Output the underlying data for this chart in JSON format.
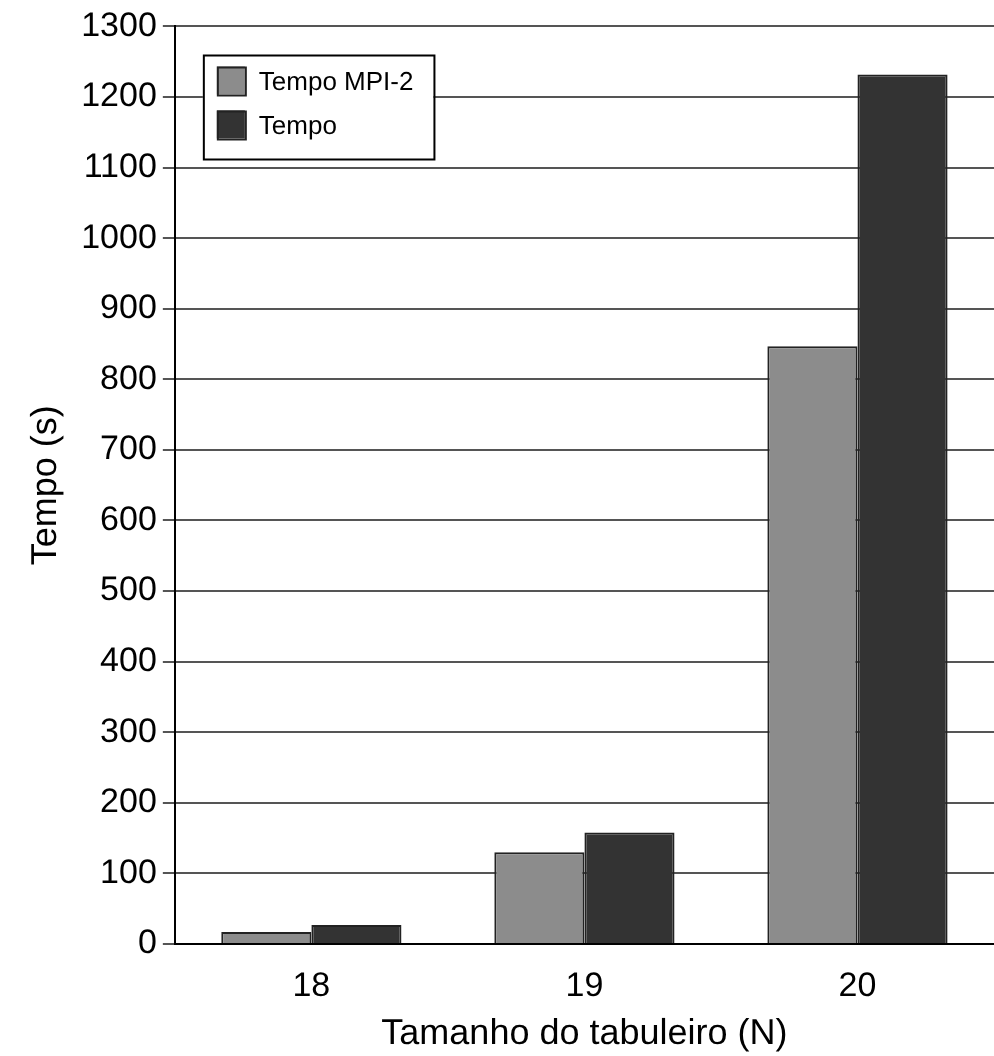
{
  "chart_data": {
    "type": "bar",
    "xlabel": "Tamanho do tabuleiro (N)",
    "ylabel": "Tempo (s)",
    "categories": [
      "18",
      "19",
      "20"
    ],
    "series": [
      {
        "name": "Tempo MPI-2",
        "color": "#8c8c8c",
        "values": [
          17,
          130,
          847
        ]
      },
      {
        "name": "Tempo",
        "color": "#333333",
        "values": [
          27,
          158,
          1232
        ]
      }
    ],
    "ylim": [
      0,
      1300
    ],
    "yticks": [
      0,
      100,
      200,
      300,
      400,
      500,
      600,
      700,
      800,
      900,
      1000,
      1100,
      1200,
      1300
    ],
    "grid": "y",
    "legend": "top left"
  }
}
